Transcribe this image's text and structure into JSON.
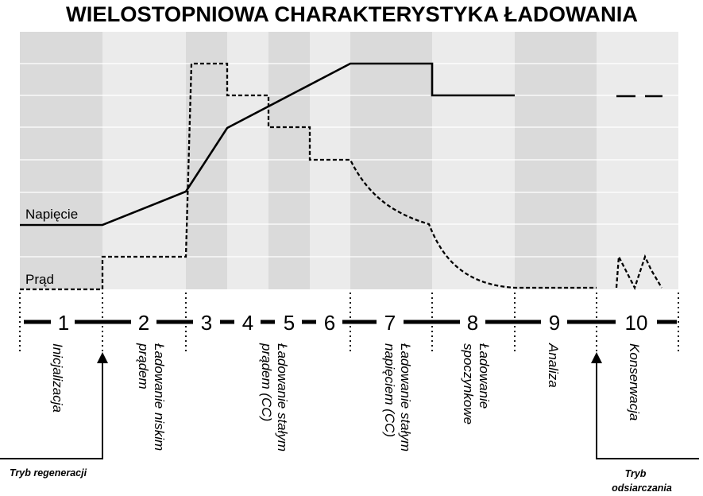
{
  "title": "WIELOSTOPNIOWA CHARAKTERYSTYKA ŁADOWANIA",
  "labels": {
    "voltage": "Napięcie",
    "current": "Prąd"
  },
  "colors": {
    "band_dark": "#dadada",
    "band_light": "#ebebeb",
    "line": "#000000",
    "grid": "#ffffff"
  },
  "stages": [
    {
      "number": "1",
      "desc": [
        "Inicjalizacja"
      ]
    },
    {
      "number": "2",
      "desc": [
        "Ładowanie niskim",
        "prądem"
      ]
    },
    {
      "number": "3",
      "desc": []
    },
    {
      "number": "4",
      "desc": [
        "Ładowanie stałym",
        "prądem (CC)"
      ]
    },
    {
      "number": "5",
      "desc": []
    },
    {
      "number": "6",
      "desc": []
    },
    {
      "number": "7",
      "desc": [
        "Ładowanie stałym",
        "napięciem (CC)"
      ]
    },
    {
      "number": "8",
      "desc": [
        "Ładowanie",
        "spoczynkowe"
      ]
    },
    {
      "number": "9",
      "desc": [
        "Analiza"
      ]
    },
    {
      "number": "10",
      "desc": [
        "Konserwacja"
      ]
    }
  ],
  "modes": {
    "regeneration": [
      "Tryb regeneracji"
    ],
    "desulfation": [
      "Tryb",
      "odsiarczania"
    ]
  }
}
